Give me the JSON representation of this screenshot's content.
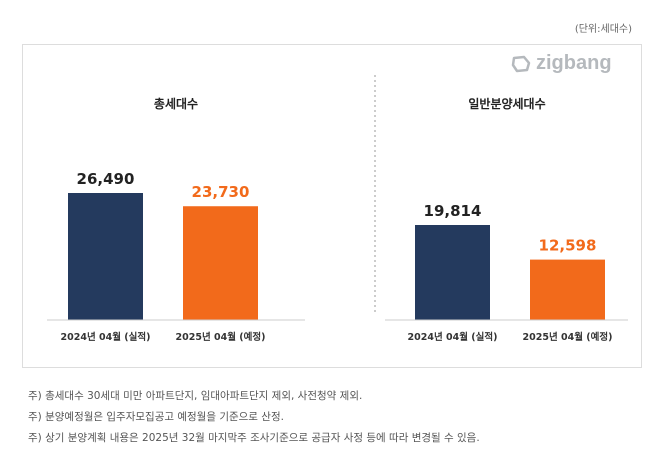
{
  "unit_label": "(단위:세대수)",
  "logo_text": "zigbang",
  "colors": {
    "actual": "#243a5e",
    "planned": "#f26a1b"
  },
  "chart_data": [
    {
      "type": "bar",
      "title": "총세대수",
      "categories": [
        "2024년 04월 (실적)",
        "2025년 04월 (예정)"
      ],
      "values": [
        26490,
        23730
      ],
      "value_labels": [
        "26,490",
        "23,730"
      ]
    },
    {
      "type": "bar",
      "title": "일반분양세대수",
      "categories": [
        "2024년 04월 (실적)",
        "2025년 04월 (예정)"
      ],
      "values": [
        19814,
        12598
      ],
      "value_labels": [
        "19,814",
        "12,598"
      ]
    }
  ],
  "notes": [
    "주) 총세대수 30세대 미만 아파트단지, 임대아파트단지 제외, 사전청약 제외.",
    "주) 분양예정월은 입주자모집공고 예정월을 기준으로 산정.",
    "주) 상기 분양계획 내용은 2025년 32월  마지막주  조사기준으로 공급자 사정 등에 따라 변경될 수 있음."
  ]
}
